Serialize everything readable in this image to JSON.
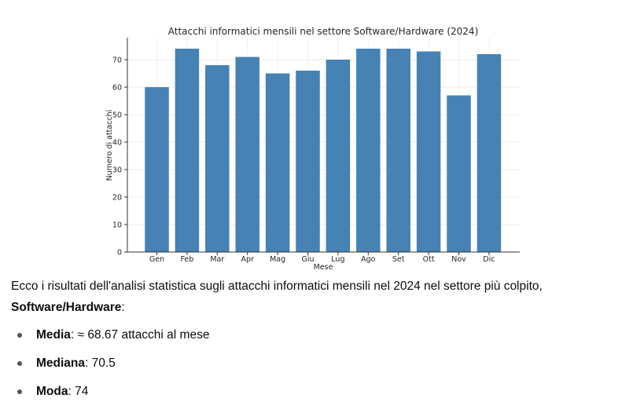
{
  "chart_data": {
    "type": "bar",
    "title": "Attacchi informatici mensili nel settore Software/Hardware (2024)",
    "xlabel": "Mese",
    "ylabel": "Numero di attacchi",
    "categories": [
      "Gen",
      "Feb",
      "Mar",
      "Apr",
      "Mag",
      "Giu",
      "Lug",
      "Ago",
      "Set",
      "Ott",
      "Nov",
      "Dic"
    ],
    "values": [
      60,
      74,
      68,
      71,
      65,
      66,
      70,
      74,
      74,
      73,
      57,
      72
    ],
    "ylim": [
      0,
      78
    ],
    "yticks": [
      0,
      10,
      20,
      30,
      40,
      50,
      60,
      70
    ],
    "grid": true,
    "bar_color": "#4682b4"
  },
  "message": {
    "intro": "Ecco i risultati dell'analisi statistica sugli attacchi informatici mensili nel 2024 nel settore più colpito,",
    "sector": "Software/Hardware",
    "sector_suffix": ":",
    "stats": [
      {
        "label": "Media",
        "value": ": ≈ 68.67 attacchi al mese"
      },
      {
        "label": "Mediana",
        "value": ": 70.5"
      },
      {
        "label": "Moda",
        "value": ": 74"
      }
    ]
  }
}
